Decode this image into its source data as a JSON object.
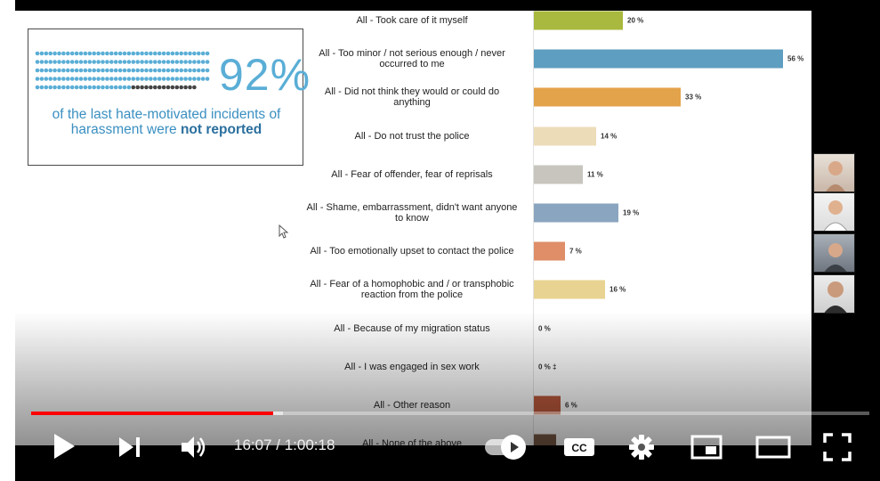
{
  "player": {
    "time_current": "16:07",
    "time_separator": " / ",
    "time_total": "1:00:18",
    "progress_played_fraction": 0.289,
    "progress_buffered_fraction": 0.3,
    "cc_label": "CC",
    "colors": {
      "progress": "#ff0000"
    },
    "controls": [
      "play-icon",
      "next-icon",
      "volume-icon",
      "autoplay-toggle",
      "cc-icon",
      "gear-icon",
      "miniplayer-icon",
      "theater-icon",
      "fullscreen-icon"
    ]
  },
  "slide": {
    "stat": {
      "percent": "92%",
      "caption_lead": "of the last hate-motivated incidents of harassment were ",
      "caption_bold": "not reported",
      "colors": {
        "dots": "#5aaed6",
        "dots_dark": "#444444",
        "text": "#3a8fc1"
      }
    },
    "chart_data": {
      "type": "bar",
      "orientation": "horizontal",
      "categories": [
        "All - Took care of it myself",
        "All - Too minor / not serious enough / never occurred to me",
        "All - Did not think they would or could do anything",
        "All - Do not trust the police",
        "All - Fear of offender, fear of reprisals",
        "All - Shame, embarrassment, didn't want anyone to know",
        "All - Too emotionally upset to contact the police",
        "All - Fear of a homophobic and / or transphobic reaction from the police",
        "All - Because of my migration status",
        "All - I was engaged in sex work",
        "All - Other reason",
        "All - None of the above"
      ],
      "values": [
        20,
        56,
        33,
        14,
        11,
        19,
        7,
        16,
        0,
        0,
        6,
        5
      ],
      "value_labels": [
        "20 %",
        "56 %",
        "33 %",
        "14 %",
        "11 %",
        "19 %",
        "7 %",
        "16 %",
        "0 %",
        "0 % ‡",
        "6 %",
        ""
      ],
      "colors": [
        "#a9b83e",
        "#5e9ec0",
        "#e3a34b",
        "#ecdcb8",
        "#c7c5bd",
        "#8aa5bf",
        "#df8e68",
        "#e8d392",
        "#bdbdbd",
        "#bdbdbd",
        "#bd5a3d",
        "#7a5a45"
      ]
    }
  }
}
